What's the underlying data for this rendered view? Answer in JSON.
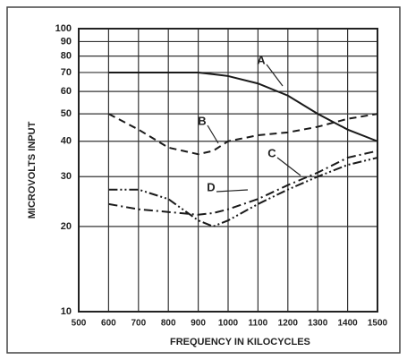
{
  "chart_data": {
    "type": "line",
    "x_label": "FREQUENCY IN KILOCYCLES",
    "y_label": "MICROVOLTS INPUT",
    "x": [
      600,
      700,
      800,
      900,
      950,
      1000,
      1100,
      1200,
      1300,
      1400,
      1500
    ],
    "series": [
      {
        "name": "A",
        "color": "#1a1a1a",
        "dash": "solid",
        "values": [
          70,
          70,
          70,
          70,
          69,
          68,
          64,
          58,
          50,
          44,
          40
        ]
      },
      {
        "name": "B",
        "color": "#1a1a1a",
        "dash": "dashed",
        "values": [
          50,
          44,
          38,
          36,
          37,
          40,
          42,
          43,
          45,
          48,
          50
        ]
      },
      {
        "name": "C",
        "color": "#1a1a1a",
        "dash": "dashdot",
        "values": [
          24,
          23,
          22.5,
          22,
          22.3,
          23,
          25,
          28,
          31,
          35,
          37
        ]
      },
      {
        "name": "D",
        "color": "#1a1a1a",
        "dash": "dashdotdot",
        "values": [
          27,
          27,
          25,
          21,
          20,
          21,
          24,
          27,
          30,
          33,
          35
        ]
      }
    ],
    "xlim": [
      500,
      1500
    ],
    "xticks": [
      500,
      600,
      700,
      800,
      900,
      1000,
      1100,
      1200,
      1300,
      1400,
      1500
    ],
    "ylim": [
      10,
      100
    ],
    "yticks": [
      10,
      20,
      30,
      40,
      50,
      60,
      70,
      80,
      90,
      100
    ],
    "y_log": true,
    "grid": true
  }
}
